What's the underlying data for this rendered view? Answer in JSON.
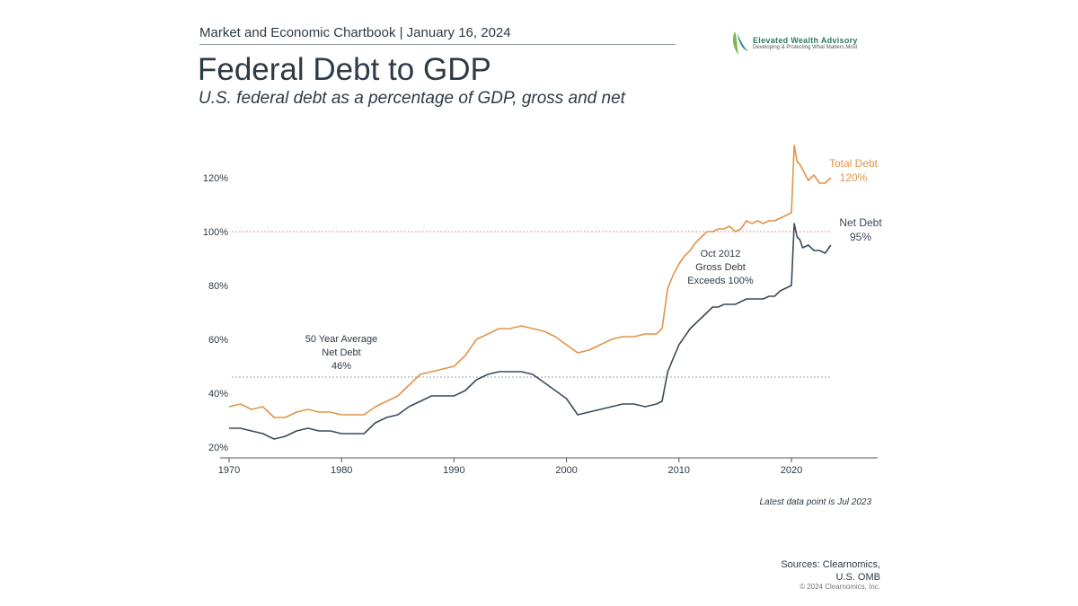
{
  "header": {
    "chartbook": "Market and Economic Chartbook | January 16, 2024",
    "logo_name": "Elevated Wealth Advisory",
    "logo_tagline": "Developing & Protecting What Matters Most"
  },
  "footer": {
    "latest": "Latest data point is Jul 2023",
    "sources_1": "Sources: Clearnomics,",
    "sources_2": "U.S. OMB",
    "copyright": "© 2024 Clearnomics, Inc."
  },
  "chart_data": {
    "type": "line",
    "title": "Federal Debt to GDP",
    "subtitle": "U.S. federal debt as a percentage of GDP, gross and net",
    "xlim": [
      1970,
      2028
    ],
    "ylim": [
      18,
      135
    ],
    "x_ticks": [
      "1970",
      "1980",
      "1990",
      "2000",
      "2010",
      "2020"
    ],
    "y_ticks": [
      "20%",
      "40%",
      "60%",
      "80%",
      "100%",
      "120%"
    ],
    "grid": false,
    "colors": {
      "total": "#e0944a",
      "net": "#3b4a5c",
      "ref100": "#e8908a",
      "avg": "#9aa3ad"
    },
    "reference_lines": [
      {
        "value": 100,
        "style": "dotted"
      },
      {
        "value": 46,
        "style": "dotted"
      }
    ],
    "series": [
      {
        "name": "Total Debt",
        "end_label": "120%",
        "x": [
          1970,
          1971,
          1972,
          1973,
          1974,
          1975,
          1976,
          1977,
          1978,
          1979,
          1980,
          1981,
          1982,
          1983,
          1984,
          1985,
          1986,
          1987,
          1988,
          1989,
          1990,
          1991,
          1992,
          1993,
          1994,
          1995,
          1996,
          1997,
          1998,
          1999,
          2000,
          2001,
          2002,
          2003,
          2004,
          2005,
          2006,
          2007,
          2008,
          2008.5,
          2009,
          2009.5,
          2010,
          2010.5,
          2011,
          2011.5,
          2012,
          2012.5,
          2013,
          2013.5,
          2014,
          2014.5,
          2015,
          2015.5,
          2016,
          2016.5,
          2017,
          2017.5,
          2018,
          2018.5,
          2019,
          2019.5,
          2020,
          2020.25,
          2020.5,
          2020.75,
          2021,
          2021.5,
          2022,
          2022.5,
          2023,
          2023.5
        ],
        "values": [
          35,
          36,
          34,
          35,
          31,
          31,
          33,
          34,
          33,
          33,
          32,
          32,
          32,
          35,
          37,
          39,
          43,
          47,
          48,
          49,
          50,
          54,
          60,
          62,
          64,
          64,
          65,
          64,
          63,
          61,
          58,
          55,
          56,
          58,
          60,
          61,
          61,
          62,
          62,
          64,
          79,
          84,
          88,
          91,
          93,
          96,
          98,
          100,
          100,
          101,
          101,
          102,
          100,
          101,
          104,
          103,
          104,
          103,
          104,
          104,
          105,
          106,
          107,
          132,
          126,
          125,
          123,
          119,
          121,
          118,
          118,
          120
        ]
      },
      {
        "name": "Net Debt",
        "end_label": "95%",
        "x": [
          1970,
          1971,
          1972,
          1973,
          1974,
          1975,
          1976,
          1977,
          1978,
          1979,
          1980,
          1981,
          1982,
          1983,
          1984,
          1985,
          1986,
          1987,
          1988,
          1989,
          1990,
          1991,
          1992,
          1993,
          1994,
          1995,
          1996,
          1997,
          1998,
          1999,
          2000,
          2001,
          2002,
          2003,
          2004,
          2005,
          2006,
          2007,
          2008,
          2008.5,
          2009,
          2009.5,
          2010,
          2010.5,
          2011,
          2011.5,
          2012,
          2012.5,
          2013,
          2013.5,
          2014,
          2014.5,
          2015,
          2015.5,
          2016,
          2016.5,
          2017,
          2017.5,
          2018,
          2018.5,
          2019,
          2019.5,
          2020,
          2020.25,
          2020.5,
          2020.75,
          2021,
          2021.5,
          2022,
          2022.5,
          2023,
          2023.5
        ],
        "values": [
          27,
          27,
          26,
          25,
          23,
          24,
          26,
          27,
          26,
          26,
          25,
          25,
          25,
          29,
          31,
          32,
          35,
          37,
          39,
          39,
          39,
          41,
          45,
          47,
          48,
          48,
          48,
          47,
          44,
          41,
          38,
          32,
          33,
          34,
          35,
          36,
          36,
          35,
          36,
          37,
          48,
          53,
          58,
          61,
          64,
          66,
          68,
          70,
          72,
          72,
          73,
          73,
          73,
          74,
          75,
          75,
          75,
          75,
          76,
          76,
          78,
          79,
          80,
          103,
          98,
          97,
          94,
          95,
          93,
          93,
          92,
          95
        ]
      }
    ],
    "annotations": [
      {
        "lines": [
          "50 Year Average",
          "Net Debt",
          "46%"
        ]
      },
      {
        "lines": [
          "Oct 2012",
          "Gross Debt",
          "Exceeds 100%"
        ]
      }
    ]
  }
}
